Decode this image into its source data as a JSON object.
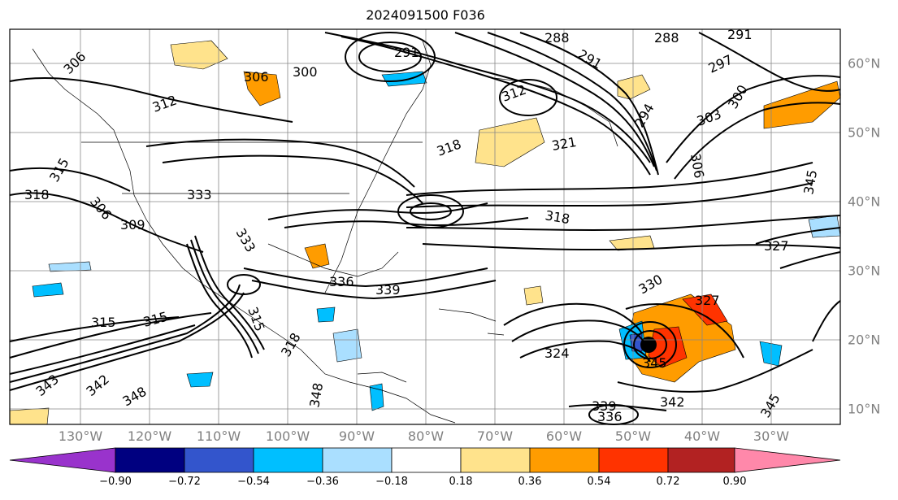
{
  "title": "2024091500 F036",
  "lon_labels": [
    "130°W",
    "120°W",
    "110°W",
    "100°W",
    "90°W",
    "80°W",
    "70°W",
    "60°W",
    "50°W",
    "40°W",
    "30°W"
  ],
  "lat_labels": [
    "60°N",
    "50°N",
    "40°N",
    "30°N",
    "20°N",
    "10°N"
  ],
  "colorbar": {
    "ticks": [
      "−0.90",
      "−0.72",
      "−0.54",
      "−0.36",
      "−0.18",
      "0.18",
      "0.36",
      "0.54",
      "0.72",
      "0.90"
    ],
    "colors": [
      "#9933cc",
      "#000080",
      "#3355cc",
      "#00bfff",
      "#aadfff",
      "#ffffff",
      "#ffe38c",
      "#ff9c00",
      "#ff3300",
      "#b22222",
      "#ff88aa"
    ]
  },
  "contour_labels": [
    "306",
    "300",
    "306",
    "288",
    "288",
    "291",
    "291",
    "297",
    "291",
    "312",
    "294",
    "300",
    "303",
    "306",
    "312",
    "318",
    "321",
    "318",
    "315",
    "318",
    "309",
    "306",
    "333",
    "333",
    "315",
    "336",
    "339",
    "330",
    "327",
    "327",
    "315",
    "315",
    "343",
    "342",
    "348",
    "348",
    "342",
    "339",
    "336",
    "318",
    "324",
    "345",
    "345"
  ]
}
